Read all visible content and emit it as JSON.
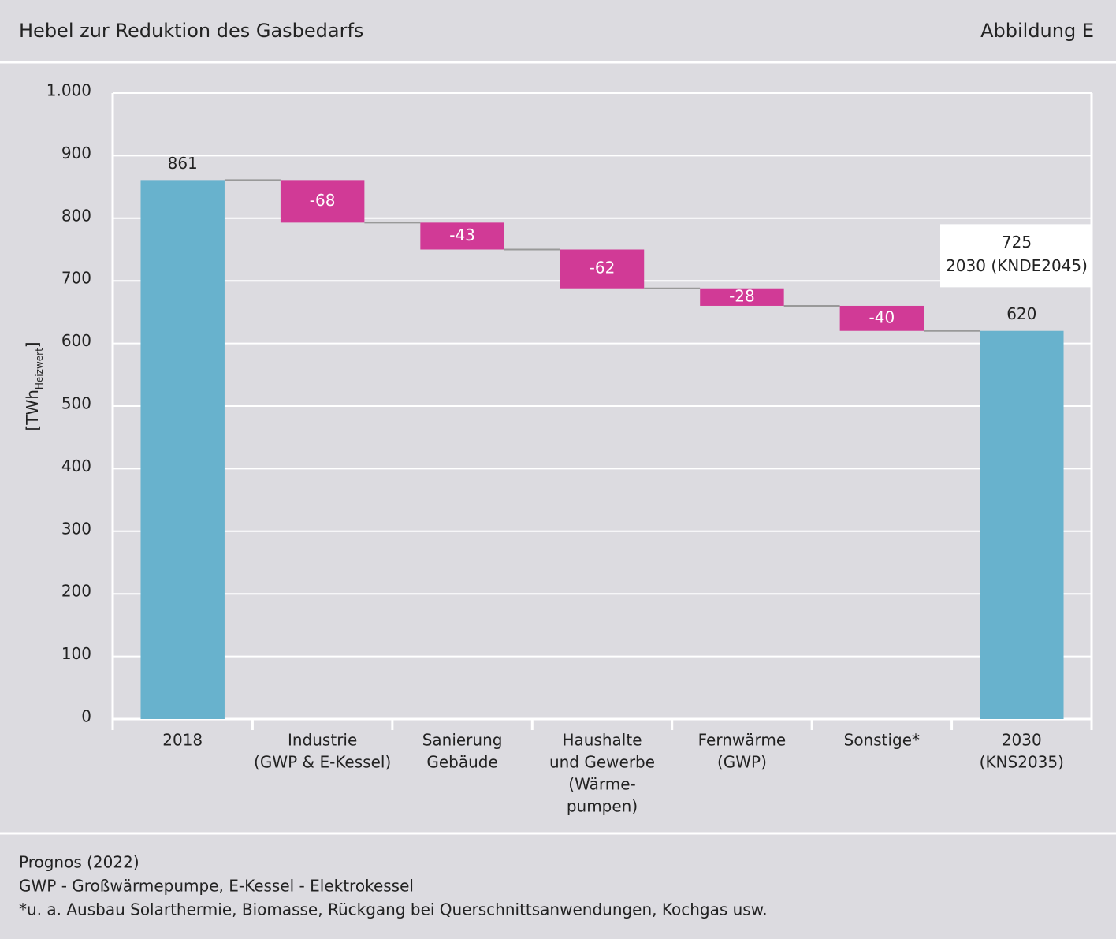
{
  "header": {
    "title": "Hebel zur Reduktion des Gasbedarfs",
    "figure": "Abbildung E"
  },
  "chart_data": {
    "type": "waterfall",
    "categories": [
      [
        "2018"
      ],
      [
        "Industrie",
        "(GWP & E-Kessel)"
      ],
      [
        "Sanierung",
        "Gebäude"
      ],
      [
        "Haushalte",
        "und Gewerbe",
        "(Wärme-",
        "pumpen)"
      ],
      [
        "Fernwärme",
        "(GWP)"
      ],
      [
        "Sonstige*"
      ],
      [
        "2030",
        "(KNS2035)"
      ]
    ],
    "values": [
      861,
      -68,
      -43,
      -62,
      -28,
      -40,
      620
    ],
    "total_color": "#68b2cd",
    "change_color": "#d13a96",
    "ylim": [
      0,
      1000
    ],
    "yticks": [
      0,
      100,
      200,
      300,
      400,
      500,
      600,
      700,
      800,
      900,
      {
        "value": 1000,
        "label": "1.000"
      }
    ],
    "ylabel": [
      "[TWh",
      "Heizwert",
      "]"
    ],
    "grid": true,
    "annotation": {
      "value": 725,
      "label": "2030 (KNDE2045)"
    }
  },
  "footer": {
    "notes": [
      "Prognos (2022)",
      "GWP - Großwärmepumpe, E-Kessel - Elektrokessel",
      "*u. a. Ausbau Solarthermie, Biomasse, Rückgang bei Querschnittsanwendungen, Kochgas usw."
    ]
  }
}
